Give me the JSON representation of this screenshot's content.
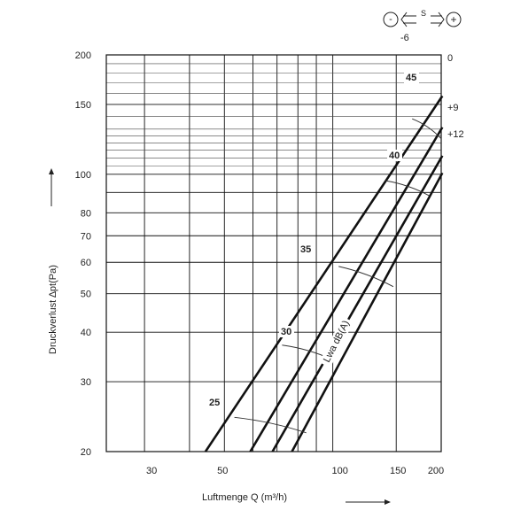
{
  "chart_data": {
    "type": "line",
    "xlabel": "Luftmenge Q (m³/h)",
    "ylabel": "Druckverlust ∆pt(Pa)",
    "x_scale": "log",
    "y_scale": "log",
    "xlim": [
      23.5,
      200
    ],
    "ylim": [
      20,
      200
    ],
    "x_ticks": [
      "30",
      "50",
      "100",
      "150",
      "200"
    ],
    "y_ticks": [
      "20",
      "30",
      "40",
      "50",
      "60",
      "70",
      "80",
      "100",
      "150",
      "200"
    ],
    "grid": true,
    "legend_title": "S",
    "legend_minus": "-",
    "legend_plus": "+",
    "series": [
      {
        "name": "-6",
        "x": [
          44.3,
          201.5
        ],
        "y": [
          20,
          157.6
        ]
      },
      {
        "name": "0",
        "x": [
          59.0,
          201.5
        ],
        "y": [
          20,
          131.4
        ]
      },
      {
        "name": "+9",
        "x": [
          68.0,
          201.5
        ],
        "y": [
          20,
          111.4
        ]
      },
      {
        "name": "+12",
        "x": [
          77.0,
          201.5
        ],
        "y": [
          20,
          100.8
        ]
      }
    ],
    "sound_level_title": "Lwa dB(A)",
    "sound_levels": [
      {
        "label": "25",
        "x": [
          53.3,
          84.4
        ],
        "y": [
          24.4,
          22.3
        ]
      },
      {
        "label": "30",
        "x": [
          72.3,
          99.7
        ],
        "y": [
          37.1,
          34.1
        ]
      },
      {
        "label": "35",
        "x": [
          103.8,
          147.2
        ],
        "y": [
          58.6,
          52.1
        ]
      },
      {
        "label": "40",
        "x": [
          139.8,
          185.3
        ],
        "y": [
          96.4,
          88.3
        ]
      },
      {
        "label": "45",
        "x": [
          166.1,
          200.0
        ],
        "y": [
          138,
          123
        ]
      }
    ]
  }
}
